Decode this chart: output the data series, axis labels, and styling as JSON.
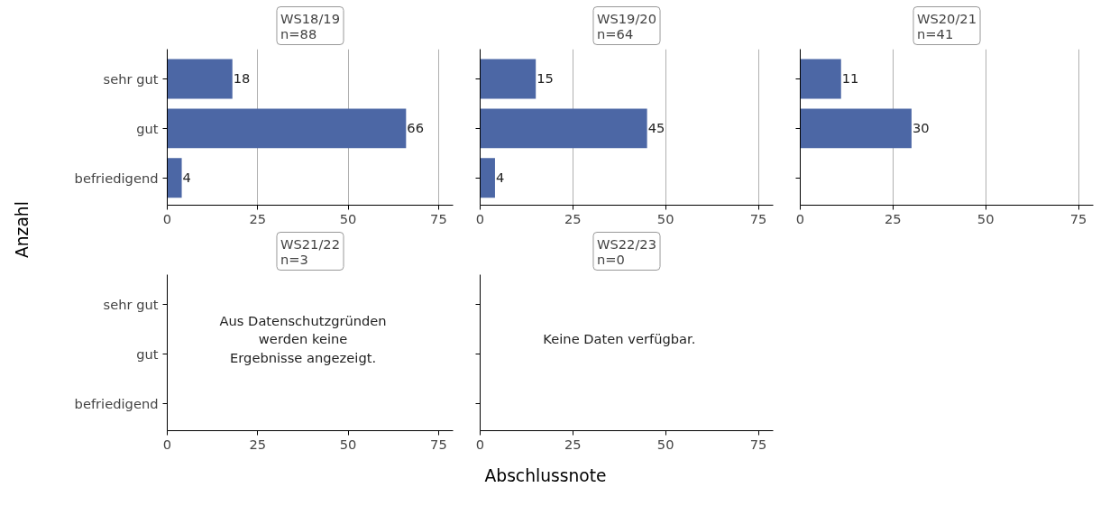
{
  "chart_data": [
    {
      "type": "bar",
      "orientation": "horizontal",
      "title": "WS18/19\nn=88",
      "ylabel": "Anzahl",
      "xlabel": "Abschlussnote",
      "categories": [
        "sehr gut",
        "gut",
        "befriedigend"
      ],
      "values": [
        18,
        66,
        4
      ],
      "color": "#4c67a5",
      "xlim": [
        0,
        79
      ],
      "xticks": [
        0,
        25,
        50,
        75
      ],
      "grid": "x",
      "data_labels": true
    },
    {
      "type": "bar",
      "orientation": "horizontal",
      "title": "WS19/20\nn=64",
      "categories": [
        null,
        null,
        null
      ],
      "values": [
        15,
        45,
        4
      ],
      "color": "#4c67a5",
      "xlim": [
        0,
        79
      ],
      "xticks": [
        0,
        25,
        50,
        75
      ],
      "grid": "x",
      "data_labels": true,
      "tick_labels": "x"
    },
    {
      "type": "bar",
      "orientation": "horizontal",
      "title": "WS20/21\nn=41",
      "categories": [
        null,
        null,
        null
      ],
      "values": [
        11,
        30,
        null
      ],
      "color": "#4c67a5",
      "xlim": [
        0,
        79
      ],
      "xticks": [
        0,
        25,
        50,
        75
      ],
      "grid": "x",
      "data_labels": true,
      "tick_labels": "x"
    },
    {
      "type": "bar",
      "orientation": "horizontal",
      "title": "WS21/22\nn=3",
      "categories": [
        "sehr gut",
        "gut",
        "befriedigend"
      ],
      "values": [
        null,
        null,
        null
      ],
      "color": "#4c67a5",
      "xlim": [
        0,
        79
      ],
      "xticks": [
        0,
        25,
        50,
        75
      ],
      "annotations": [
        "Aus Datenschutzgründen\nwerden keine\nErgebnisse angezeigt."
      ]
    },
    {
      "type": "bar",
      "orientation": "horizontal",
      "title": "WS22/23\nn=0",
      "categories": [
        null,
        null,
        null
      ],
      "values": [
        null,
        null,
        null
      ],
      "color": "#4c67a5",
      "xlim": [
        0,
        79
      ],
      "xticks": [
        0,
        25,
        50,
        75
      ],
      "annotations": [
        "Keine Daten verfügbar."
      ],
      "tick_labels": "x"
    }
  ]
}
